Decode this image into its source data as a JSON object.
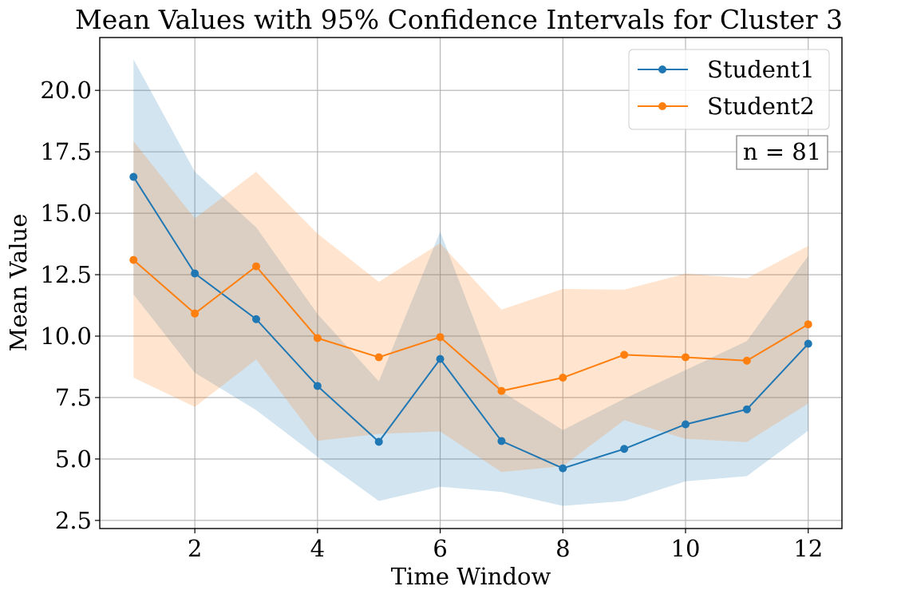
{
  "chart_data": {
    "type": "line",
    "title": "Mean Values with 95% Confidence Intervals for Cluster 3",
    "xlabel": "Time Window",
    "ylabel": "Mean Value",
    "xlim": [
      0.45,
      12.55
    ],
    "ylim": [
      2.17,
      22.15
    ],
    "grid": true,
    "x": [
      1,
      2,
      3,
      4,
      5,
      6,
      7,
      8,
      9,
      10,
      11,
      12
    ],
    "xticks": [
      2,
      4,
      6,
      8,
      10,
      12
    ],
    "xtick_labels": [
      "2",
      "4",
      "6",
      "8",
      "10",
      "12"
    ],
    "yticks": [
      2.5,
      5.0,
      7.5,
      10.0,
      12.5,
      15.0,
      17.5,
      20.0
    ],
    "ytick_labels": [
      "2.5",
      "5.0",
      "7.5",
      "10.0",
      "12.5",
      "15.0",
      "17.5",
      "20.0"
    ],
    "legend_position": "top-right",
    "series": [
      {
        "name": "Student1",
        "color": "#1f77b4",
        "fill_color": "#1f77b4",
        "values": [
          16.48,
          12.55,
          10.69,
          7.97,
          5.7,
          9.07,
          5.73,
          4.62,
          5.41,
          6.41,
          7.02,
          9.69
        ],
        "ci_upper": [
          21.26,
          16.69,
          14.43,
          10.9,
          8.16,
          14.25,
          7.75,
          6.18,
          7.45,
          8.62,
          9.8,
          13.27
        ],
        "ci_lower": [
          11.7,
          8.51,
          6.99,
          5.09,
          3.29,
          3.87,
          3.66,
          3.09,
          3.29,
          4.09,
          4.3,
          6.15
        ]
      },
      {
        "name": "Student2",
        "color": "#ff7f0e",
        "fill_color": "#ff7f0e",
        "values": [
          13.1,
          10.92,
          12.84,
          9.92,
          9.14,
          9.96,
          7.77,
          8.31,
          9.24,
          9.14,
          9.0,
          10.48
        ],
        "ci_upper": [
          17.93,
          14.79,
          16.69,
          14.17,
          12.21,
          13.78,
          11.08,
          11.92,
          11.89,
          12.54,
          12.35,
          13.67
        ],
        "ci_lower": [
          8.31,
          7.12,
          9.05,
          5.74,
          6.02,
          6.12,
          4.47,
          4.71,
          6.58,
          5.82,
          5.69,
          7.26
        ]
      }
    ],
    "annotations": [
      {
        "text": "n = 81",
        "position": "top-right",
        "boxed": true
      }
    ]
  }
}
